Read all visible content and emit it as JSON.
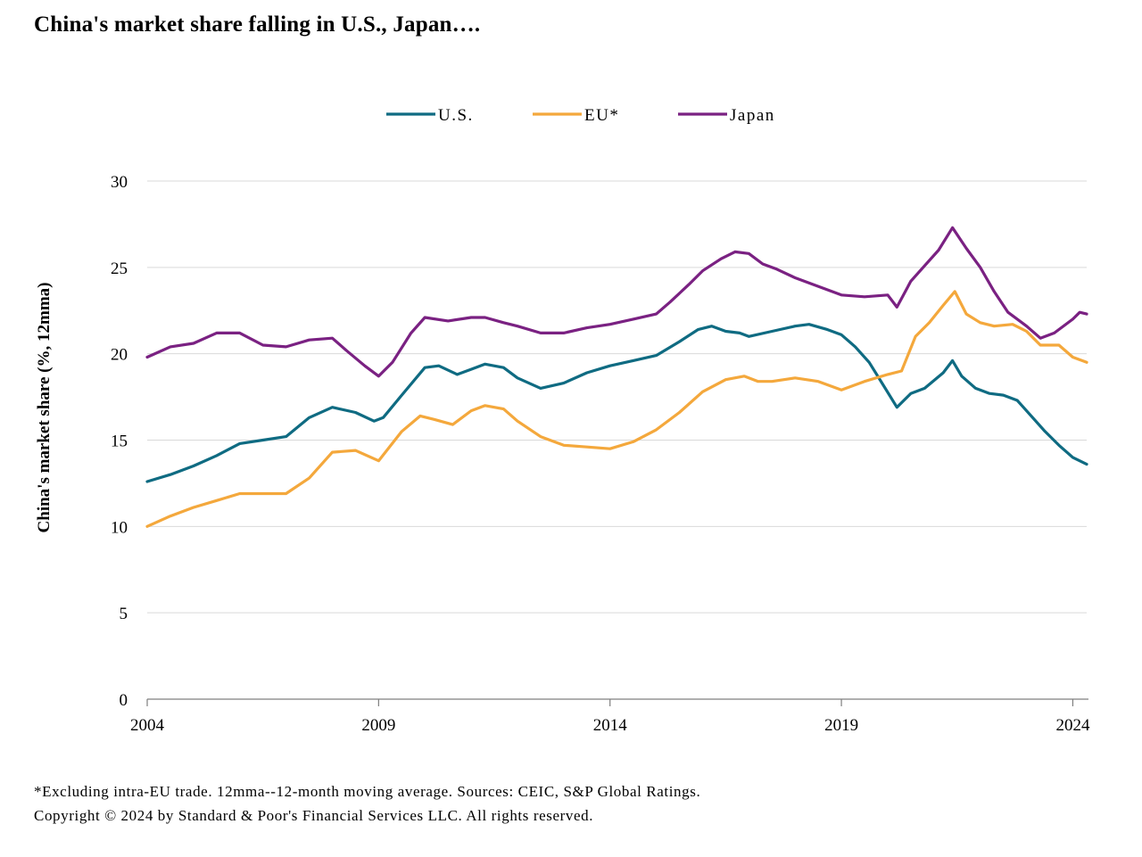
{
  "title": "China's market share falling in U.S., Japan….",
  "footnotes": [
    "*Excluding intra-EU trade. 12mma--12-month moving average. Sources: CEIC, S&P Global Ratings.",
    "Copyright © 2024 by Standard & Poor's Financial Services LLC. All rights reserved."
  ],
  "chart_data": {
    "type": "line",
    "title": "China's market share falling in U.S., Japan….",
    "ylabel": "China's market share (%, 12mma)",
    "xlabel": "",
    "xlim": [
      2004.0,
      2024.3
    ],
    "ylim": [
      0,
      30
    ],
    "x_ticks": [
      2004,
      2009,
      2014,
      2019,
      2024
    ],
    "x_tick_labels": [
      "2004",
      "2009",
      "2014",
      "2019",
      "2024"
    ],
    "y_ticks": [
      0,
      5,
      10,
      15,
      20,
      25,
      30
    ],
    "y_tick_labels": [
      "0",
      "5",
      "10",
      "15",
      "20",
      "25",
      "30"
    ],
    "grid": "horizontal",
    "legend_position": "top-center",
    "series": [
      {
        "name": "U.S.",
        "color": "#0f6b82",
        "points": [
          [
            2004.0,
            12.6
          ],
          [
            2004.5,
            13.0
          ],
          [
            2005.0,
            13.5
          ],
          [
            2005.5,
            14.1
          ],
          [
            2006.0,
            14.8
          ],
          [
            2006.5,
            15.0
          ],
          [
            2007.0,
            15.2
          ],
          [
            2007.5,
            16.3
          ],
          [
            2008.0,
            16.9
          ],
          [
            2008.5,
            16.6
          ],
          [
            2008.9,
            16.1
          ],
          [
            2009.1,
            16.3
          ],
          [
            2009.5,
            17.6
          ],
          [
            2010.0,
            19.2
          ],
          [
            2010.3,
            19.3
          ],
          [
            2010.7,
            18.8
          ],
          [
            2011.0,
            19.1
          ],
          [
            2011.3,
            19.4
          ],
          [
            2011.7,
            19.2
          ],
          [
            2012.0,
            18.6
          ],
          [
            2012.5,
            18.0
          ],
          [
            2013.0,
            18.3
          ],
          [
            2013.5,
            18.9
          ],
          [
            2014.0,
            19.3
          ],
          [
            2014.5,
            19.6
          ],
          [
            2015.0,
            19.9
          ],
          [
            2015.5,
            20.7
          ],
          [
            2015.9,
            21.4
          ],
          [
            2016.2,
            21.6
          ],
          [
            2016.5,
            21.3
          ],
          [
            2016.8,
            21.2
          ],
          [
            2017.0,
            21.0
          ],
          [
            2017.5,
            21.3
          ],
          [
            2018.0,
            21.6
          ],
          [
            2018.3,
            21.7
          ],
          [
            2018.7,
            21.4
          ],
          [
            2019.0,
            21.1
          ],
          [
            2019.3,
            20.4
          ],
          [
            2019.6,
            19.5
          ],
          [
            2019.9,
            18.2
          ],
          [
            2020.2,
            16.9
          ],
          [
            2020.5,
            17.7
          ],
          [
            2020.8,
            18.0
          ],
          [
            2021.2,
            18.9
          ],
          [
            2021.4,
            19.6
          ],
          [
            2021.6,
            18.7
          ],
          [
            2021.9,
            18.0
          ],
          [
            2022.2,
            17.7
          ],
          [
            2022.5,
            17.6
          ],
          [
            2022.8,
            17.3
          ],
          [
            2023.1,
            16.4
          ],
          [
            2023.4,
            15.5
          ],
          [
            2023.7,
            14.7
          ],
          [
            2024.0,
            14.0
          ],
          [
            2024.3,
            13.6
          ]
        ]
      },
      {
        "name": "EU*",
        "color": "#f4a83c",
        "points": [
          [
            2004.0,
            10.0
          ],
          [
            2004.5,
            10.6
          ],
          [
            2005.0,
            11.1
          ],
          [
            2005.5,
            11.5
          ],
          [
            2006.0,
            11.9
          ],
          [
            2006.5,
            11.9
          ],
          [
            2007.0,
            11.9
          ],
          [
            2007.5,
            12.8
          ],
          [
            2008.0,
            14.3
          ],
          [
            2008.5,
            14.4
          ],
          [
            2009.0,
            13.8
          ],
          [
            2009.5,
            15.5
          ],
          [
            2009.9,
            16.4
          ],
          [
            2010.2,
            16.2
          ],
          [
            2010.6,
            15.9
          ],
          [
            2011.0,
            16.7
          ],
          [
            2011.3,
            17.0
          ],
          [
            2011.7,
            16.8
          ],
          [
            2012.0,
            16.1
          ],
          [
            2012.5,
            15.2
          ],
          [
            2013.0,
            14.7
          ],
          [
            2013.5,
            14.6
          ],
          [
            2014.0,
            14.5
          ],
          [
            2014.5,
            14.9
          ],
          [
            2015.0,
            15.6
          ],
          [
            2015.5,
            16.6
          ],
          [
            2016.0,
            17.8
          ],
          [
            2016.5,
            18.5
          ],
          [
            2016.9,
            18.7
          ],
          [
            2017.2,
            18.4
          ],
          [
            2017.5,
            18.4
          ],
          [
            2018.0,
            18.6
          ],
          [
            2018.5,
            18.4
          ],
          [
            2019.0,
            17.9
          ],
          [
            2019.5,
            18.4
          ],
          [
            2020.0,
            18.8
          ],
          [
            2020.3,
            19.0
          ],
          [
            2020.6,
            21.0
          ],
          [
            2020.9,
            21.8
          ],
          [
            2021.2,
            22.8
          ],
          [
            2021.45,
            23.6
          ],
          [
            2021.7,
            22.3
          ],
          [
            2022.0,
            21.8
          ],
          [
            2022.3,
            21.6
          ],
          [
            2022.7,
            21.7
          ],
          [
            2023.0,
            21.3
          ],
          [
            2023.3,
            20.5
          ],
          [
            2023.7,
            20.5
          ],
          [
            2024.0,
            19.8
          ],
          [
            2024.3,
            19.5
          ]
        ]
      },
      {
        "name": "Japan",
        "color": "#7a2182",
        "points": [
          [
            2004.0,
            19.8
          ],
          [
            2004.5,
            20.4
          ],
          [
            2005.0,
            20.6
          ],
          [
            2005.5,
            21.2
          ],
          [
            2006.0,
            21.2
          ],
          [
            2006.5,
            20.5
          ],
          [
            2007.0,
            20.4
          ],
          [
            2007.5,
            20.8
          ],
          [
            2008.0,
            20.9
          ],
          [
            2008.3,
            20.2
          ],
          [
            2008.7,
            19.3
          ],
          [
            2009.0,
            18.7
          ],
          [
            2009.3,
            19.5
          ],
          [
            2009.7,
            21.2
          ],
          [
            2010.0,
            22.1
          ],
          [
            2010.5,
            21.9
          ],
          [
            2011.0,
            22.1
          ],
          [
            2011.3,
            22.1
          ],
          [
            2011.7,
            21.8
          ],
          [
            2012.0,
            21.6
          ],
          [
            2012.5,
            21.2
          ],
          [
            2013.0,
            21.2
          ],
          [
            2013.5,
            21.5
          ],
          [
            2014.0,
            21.7
          ],
          [
            2014.5,
            22.0
          ],
          [
            2015.0,
            22.3
          ],
          [
            2015.3,
            23.0
          ],
          [
            2015.7,
            24.0
          ],
          [
            2016.0,
            24.8
          ],
          [
            2016.4,
            25.5
          ],
          [
            2016.7,
            25.9
          ],
          [
            2017.0,
            25.8
          ],
          [
            2017.3,
            25.2
          ],
          [
            2017.6,
            24.9
          ],
          [
            2018.0,
            24.4
          ],
          [
            2018.5,
            23.9
          ],
          [
            2019.0,
            23.4
          ],
          [
            2019.5,
            23.3
          ],
          [
            2020.0,
            23.4
          ],
          [
            2020.2,
            22.7
          ],
          [
            2020.5,
            24.2
          ],
          [
            2020.8,
            25.1
          ],
          [
            2021.1,
            26.0
          ],
          [
            2021.4,
            27.3
          ],
          [
            2021.7,
            26.1
          ],
          [
            2022.0,
            25.0
          ],
          [
            2022.3,
            23.6
          ],
          [
            2022.6,
            22.4
          ],
          [
            2023.0,
            21.6
          ],
          [
            2023.3,
            20.9
          ],
          [
            2023.6,
            21.2
          ],
          [
            2024.0,
            22.0
          ],
          [
            2024.15,
            22.4
          ],
          [
            2024.3,
            22.3
          ]
        ]
      }
    ]
  }
}
